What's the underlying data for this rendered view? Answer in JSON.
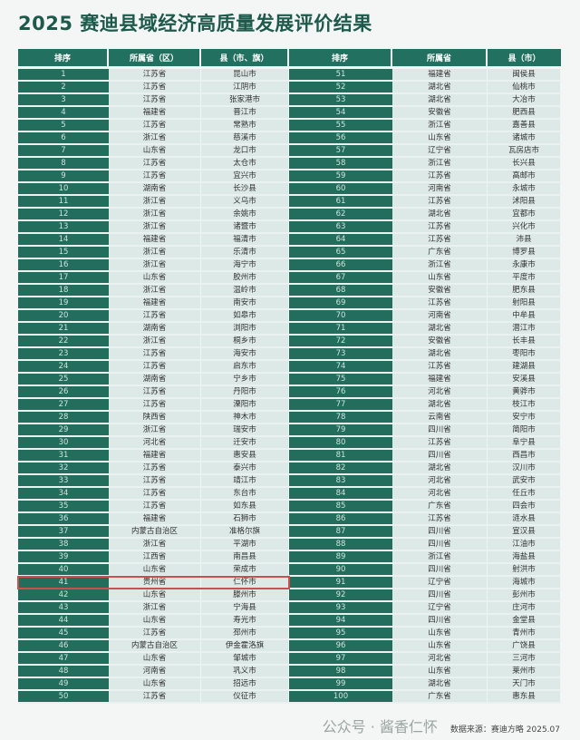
{
  "title": "2025 赛迪县域经济高质量发展评价结果",
  "left_headers": [
    "排序",
    "所属省（区）",
    "县（市、旗）"
  ],
  "right_headers": [
    "排序",
    "所属省",
    "县（市）"
  ],
  "highlighted_rank": 41,
  "colors": {
    "header": "#22705f",
    "rank_cell": "#226d5c",
    "cell": "#dde9e6",
    "highlight": "#c9504f",
    "title": "#1d5a4b"
  },
  "left_rows": [
    [
      "1",
      "江苏省",
      "昆山市"
    ],
    [
      "2",
      "江苏省",
      "江阴市"
    ],
    [
      "3",
      "江苏省",
      "张家港市"
    ],
    [
      "4",
      "福建省",
      "晋江市"
    ],
    [
      "5",
      "江苏省",
      "常熟市"
    ],
    [
      "6",
      "浙江省",
      "慈溪市"
    ],
    [
      "7",
      "山东省",
      "龙口市"
    ],
    [
      "8",
      "江苏省",
      "太仓市"
    ],
    [
      "9",
      "江苏省",
      "宜兴市"
    ],
    [
      "10",
      "湖南省",
      "长沙县"
    ],
    [
      "11",
      "浙江省",
      "义乌市"
    ],
    [
      "12",
      "浙江省",
      "余姚市"
    ],
    [
      "13",
      "浙江省",
      "诸暨市"
    ],
    [
      "14",
      "福建省",
      "福清市"
    ],
    [
      "15",
      "浙江省",
      "乐清市"
    ],
    [
      "16",
      "浙江省",
      "海宁市"
    ],
    [
      "17",
      "山东省",
      "胶州市"
    ],
    [
      "18",
      "浙江省",
      "温岭市"
    ],
    [
      "19",
      "福建省",
      "南安市"
    ],
    [
      "20",
      "江苏省",
      "如皋市"
    ],
    [
      "21",
      "湖南省",
      "浏阳市"
    ],
    [
      "22",
      "浙江省",
      "桐乡市"
    ],
    [
      "23",
      "江苏省",
      "海安市"
    ],
    [
      "24",
      "江苏省",
      "启东市"
    ],
    [
      "25",
      "湖南省",
      "宁乡市"
    ],
    [
      "26",
      "江苏省",
      "丹阳市"
    ],
    [
      "27",
      "江苏省",
      "溧阳市"
    ],
    [
      "28",
      "陕西省",
      "神木市"
    ],
    [
      "29",
      "浙江省",
      "瑞安市"
    ],
    [
      "30",
      "河北省",
      "迁安市"
    ],
    [
      "31",
      "福建省",
      "惠安县"
    ],
    [
      "32",
      "江苏省",
      "泰兴市"
    ],
    [
      "33",
      "江苏省",
      "靖江市"
    ],
    [
      "34",
      "江苏省",
      "东台市"
    ],
    [
      "35",
      "江苏省",
      "如东县"
    ],
    [
      "36",
      "福建省",
      "石狮市"
    ],
    [
      "37",
      "内蒙古自治区",
      "准格尔旗"
    ],
    [
      "38",
      "浙江省",
      "平湖市"
    ],
    [
      "39",
      "江西省",
      "南昌县"
    ],
    [
      "40",
      "山东省",
      "荣成市"
    ],
    [
      "41",
      "贵州省",
      "仁怀市"
    ],
    [
      "42",
      "山东省",
      "滕州市"
    ],
    [
      "43",
      "浙江省",
      "宁海县"
    ],
    [
      "44",
      "山东省",
      "寿光市"
    ],
    [
      "45",
      "江苏省",
      "邳州市"
    ],
    [
      "46",
      "内蒙古自治区",
      "伊金霍洛旗"
    ],
    [
      "47",
      "山东省",
      "邹城市"
    ],
    [
      "48",
      "河南省",
      "巩义市"
    ],
    [
      "49",
      "山东省",
      "招远市"
    ],
    [
      "50",
      "江苏省",
      "仪征市"
    ]
  ],
  "right_rows": [
    [
      "51",
      "福建省",
      "闽侯县"
    ],
    [
      "52",
      "湖北省",
      "仙桃市"
    ],
    [
      "53",
      "湖北省",
      "大冶市"
    ],
    [
      "54",
      "安徽省",
      "肥西县"
    ],
    [
      "55",
      "浙江省",
      "嘉善县"
    ],
    [
      "56",
      "山东省",
      "诸城市"
    ],
    [
      "57",
      "辽宁省",
      "瓦房店市"
    ],
    [
      "58",
      "浙江省",
      "长兴县"
    ],
    [
      "59",
      "江苏省",
      "高邮市"
    ],
    [
      "60",
      "河南省",
      "永城市"
    ],
    [
      "61",
      "江苏省",
      "沭阳县"
    ],
    [
      "62",
      "湖北省",
      "宜都市"
    ],
    [
      "63",
      "江苏省",
      "兴化市"
    ],
    [
      "64",
      "江苏省",
      "沛县"
    ],
    [
      "65",
      "广东省",
      "博罗县"
    ],
    [
      "66",
      "浙江省",
      "永康市"
    ],
    [
      "67",
      "山东省",
      "平度市"
    ],
    [
      "68",
      "安徽省",
      "肥东县"
    ],
    [
      "69",
      "江苏省",
      "射阳县"
    ],
    [
      "70",
      "河南省",
      "中牟县"
    ],
    [
      "71",
      "湖北省",
      "潜江市"
    ],
    [
      "72",
      "安徽省",
      "长丰县"
    ],
    [
      "73",
      "湖北省",
      "枣阳市"
    ],
    [
      "74",
      "江苏省",
      "建湖县"
    ],
    [
      "75",
      "福建省",
      "安溪县"
    ],
    [
      "76",
      "河北省",
      "黄骅市"
    ],
    [
      "77",
      "湖北省",
      "枝江市"
    ],
    [
      "78",
      "云南省",
      "安宁市"
    ],
    [
      "79",
      "四川省",
      "简阳市"
    ],
    [
      "80",
      "江苏省",
      "阜宁县"
    ],
    [
      "81",
      "四川省",
      "西昌市"
    ],
    [
      "82",
      "湖北省",
      "汉川市"
    ],
    [
      "83",
      "河北省",
      "武安市"
    ],
    [
      "84",
      "河北省",
      "任丘市"
    ],
    [
      "85",
      "广东省",
      "四会市"
    ],
    [
      "86",
      "江苏省",
      "涟水县"
    ],
    [
      "87",
      "四川省",
      "宣汉县"
    ],
    [
      "88",
      "四川省",
      "江油市"
    ],
    [
      "89",
      "浙江省",
      "海盐县"
    ],
    [
      "90",
      "四川省",
      "射洪市"
    ],
    [
      "91",
      "辽宁省",
      "海城市"
    ],
    [
      "92",
      "四川省",
      "彭州市"
    ],
    [
      "93",
      "辽宁省",
      "庄河市"
    ],
    [
      "94",
      "四川省",
      "金堂县"
    ],
    [
      "95",
      "山东省",
      "青州市"
    ],
    [
      "96",
      "山东省",
      "广饶县"
    ],
    [
      "97",
      "河北省",
      "三河市"
    ],
    [
      "98",
      "山东省",
      "莱州市"
    ],
    [
      "99",
      "湖北省",
      "天门市"
    ],
    [
      "100",
      "广东省",
      "惠东县"
    ]
  ],
  "watermark": "公众号 · 酱香仁怀",
  "source": "数据来源：赛迪方略 2025.07"
}
